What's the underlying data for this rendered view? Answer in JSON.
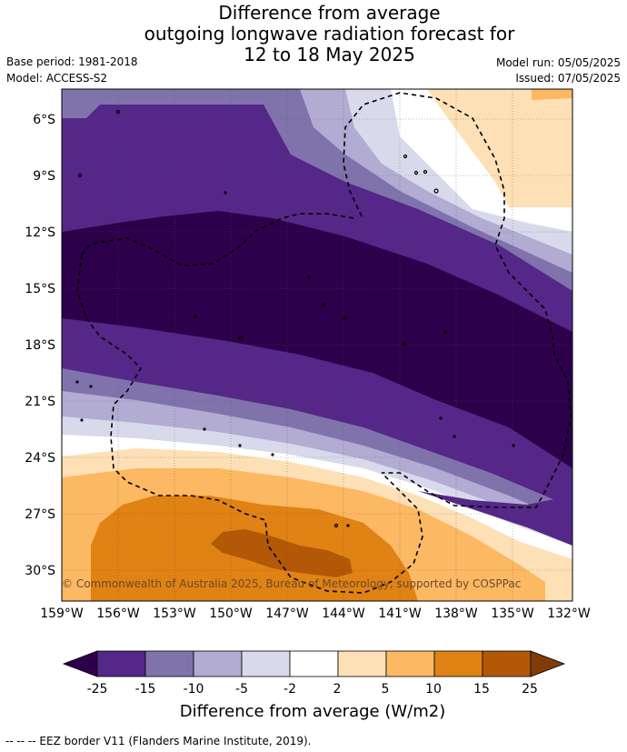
{
  "title": {
    "line1": "Difference from average",
    "line2": "outgoing longwave radiation forecast for",
    "line3": "12 to 18 May 2025"
  },
  "meta": {
    "base_period": "Base period: 1981-2018",
    "model": "Model: ACCESS-S2",
    "model_run": "Model run: 05/05/2025",
    "issued": "Issued: 07/05/2025"
  },
  "map": {
    "copyright": "© Commonwealth of Australia 2025, Bureau of Meteorology, supported by COSPPac",
    "lat_labels": [
      "6°S",
      "9°S",
      "12°S",
      "15°S",
      "18°S",
      "21°S",
      "24°S",
      "27°S",
      "30°S"
    ],
    "lon_labels": [
      "159°W",
      "156°W",
      "153°W",
      "150°W",
      "147°W",
      "144°W",
      "141°W",
      "138°W",
      "135°W",
      "132°W"
    ]
  },
  "colorbar": {
    "ticks": [
      "-25",
      "-15",
      "-10",
      "-5",
      "-2",
      "2",
      "5",
      "10",
      "15",
      "25"
    ],
    "label": "Difference from average (W/m2)",
    "colors": [
      "#2d004b",
      "#542788",
      "#8073ac",
      "#b2abd2",
      "#d8daeb",
      "#ffffff",
      "#fee0b6",
      "#fdb863",
      "#e08214",
      "#b35806",
      "#7f3b08"
    ]
  },
  "footer": "-- -- -- EEZ border V11 (Flanders Marine Institute, 2019)."
}
